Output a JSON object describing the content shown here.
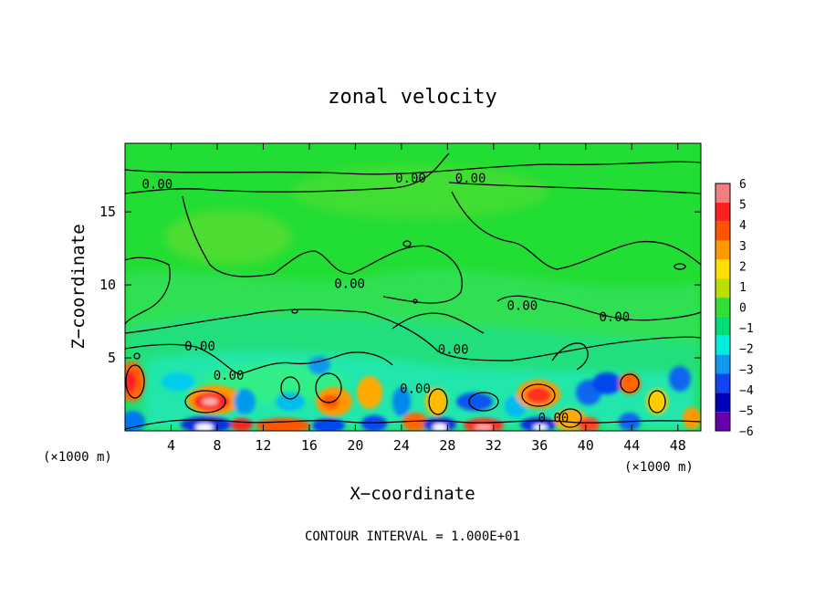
{
  "chart_data": {
    "type": "heatmap",
    "title": "zonal velocity",
    "xlabel": "X−coordinate",
    "ylabel": "Z−coordinate",
    "x_unit": "(×1000 m)",
    "y_unit": "(×1000 m)",
    "xlim": [
      0,
      50
    ],
    "ylim": [
      0,
      19.7
    ],
    "x_ticks": [
      4,
      8,
      12,
      16,
      20,
      24,
      28,
      32,
      36,
      40,
      44,
      48
    ],
    "x_tick_labels": [
      "4",
      "8",
      "12",
      "16",
      "20",
      "24",
      "28",
      "32",
      "36",
      "40",
      "44",
      "48"
    ],
    "y_ticks": [
      5,
      10,
      15
    ],
    "y_tick_labels": [
      "5",
      "10",
      "15"
    ],
    "colorbar": {
      "levels": [
        6,
        5,
        4,
        3,
        2,
        1,
        0,
        -1,
        -2,
        -3,
        -4,
        -5,
        -6
      ],
      "labels": [
        "6",
        "5",
        "4",
        "3",
        "2",
        "1",
        "0",
        "−1",
        "−2",
        "−3",
        "−4",
        "−5",
        "−6"
      ],
      "colors": [
        "#f08080",
        "#ff2020",
        "#ff5500",
        "#ff9900",
        "#ffdd00",
        "#bbdd00",
        "#33dd33",
        "#00dd77",
        "#00eedd",
        "#1199ee",
        "#1144ee",
        "#0000bb",
        "#6600aa"
      ]
    },
    "contour_label": "0.00",
    "contour_label_positions": [
      [
        2.8,
        16.6
      ],
      [
        24.8,
        17.0
      ],
      [
        30.0,
        17.0
      ],
      [
        19.5,
        9.8
      ],
      [
        34.5,
        8.3
      ],
      [
        42.5,
        7.5
      ],
      [
        6.5,
        5.5
      ],
      [
        9.0,
        3.5
      ],
      [
        28.5,
        5.3
      ],
      [
        25.2,
        2.6
      ],
      [
        37.2,
        0.6
      ]
    ],
    "footer": "CONTOUR INTERVAL = 1.000E+01"
  }
}
